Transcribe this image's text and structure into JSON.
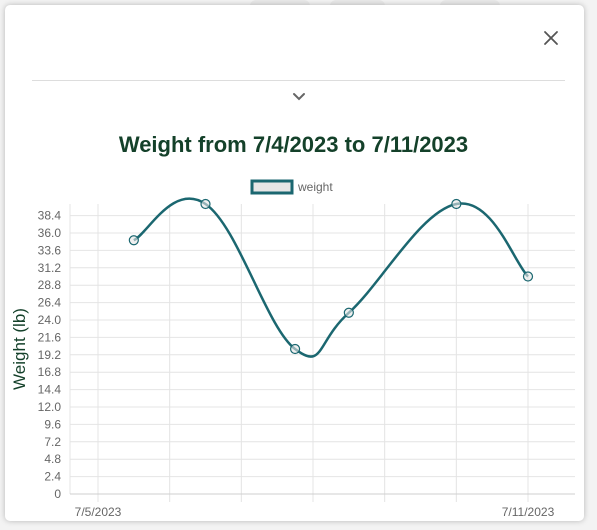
{
  "modal": {
    "close_icon": "close-icon",
    "collapse_icon": "chevron-down-icon"
  },
  "colors": {
    "title": "#14412a",
    "series": "#1b6770",
    "legend_fill": "#e6e6e6",
    "grid": "#e4e4e4",
    "tick_text": "#666666"
  },
  "chart_data": {
    "type": "line",
    "title": "Weight from 7/4/2023 to 7/11/2023",
    "xlabel": "",
    "ylabel": "Weight (lb)",
    "legend": "top-center",
    "grid": true,
    "series": [
      {
        "name": "weight",
        "points": [
          {
            "x": "2023-07-05T12:00",
            "y": 35
          },
          {
            "x": "2023-07-06T12:00",
            "y": 40
          },
          {
            "x": "2023-07-07T18:00",
            "y": 20
          },
          {
            "x": "2023-07-08T12:00",
            "y": 25
          },
          {
            "x": "2023-07-10T00:00",
            "y": 40
          },
          {
            "x": "2023-07-11T00:00",
            "y": 30
          }
        ]
      }
    ],
    "xlim": [
      "2023-07-05T00:00",
      "2023-07-11T00:00"
    ],
    "x_tick_labels": [
      "7/5/2023",
      "7/11/2023"
    ],
    "y_ticks": [
      "0",
      "2.4",
      "4.8",
      "7.2",
      "9.6",
      "12.0",
      "14.4",
      "16.8",
      "19.2",
      "21.6",
      "24.0",
      "26.4",
      "28.8",
      "31.2",
      "33.6",
      "36.0",
      "38.4"
    ],
    "ylim": [
      0,
      40
    ]
  }
}
